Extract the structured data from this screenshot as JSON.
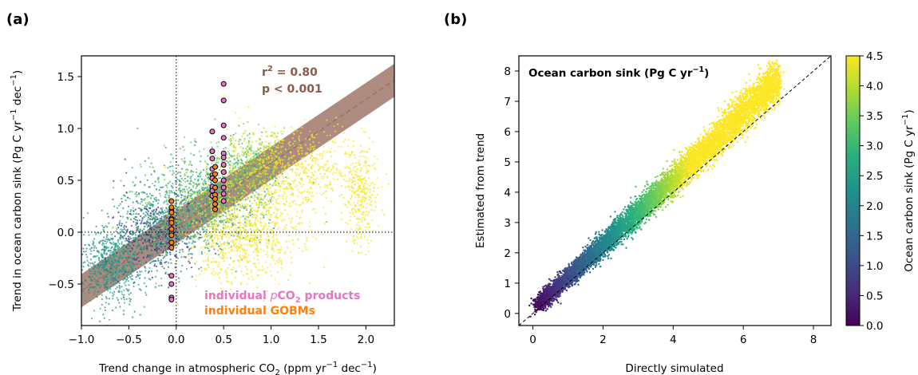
{
  "figure": {
    "panel_a_label": "(a)",
    "panel_b_label": "(b)"
  },
  "chart_data": [
    {
      "type": "scatter",
      "panel": "(a)",
      "xlabel_pre": "Trend change in atmospheric CO",
      "xlabel_sub": "2",
      "xlabel_post": " (ppm yr",
      "xlabel_sup": "−1",
      "xlabel_end": " dec",
      "xlabel_sup2": "−1",
      "xlabel_close": ")",
      "ylabel_pre": "Trend in ocean carbon sink (Pg C yr",
      "ylabel_sup": "−1",
      "ylabel_mid": " dec",
      "ylabel_sup2": "−1",
      "ylabel_close": ")",
      "xlim": [
        -1.0,
        2.3
      ],
      "ylim": [
        -0.9,
        1.7
      ],
      "xticks": [
        -1.0,
        -0.5,
        0.0,
        0.5,
        1.0,
        1.5,
        2.0
      ],
      "xtick_labels": [
        "−1.0",
        "−0.5",
        "0.0",
        "0.5",
        "1.0",
        "1.5",
        "2.0"
      ],
      "yticks": [
        -0.5,
        0.0,
        0.5,
        1.0,
        1.5
      ],
      "ytick_labels": [
        "−0.5",
        "0.0",
        "0.5",
        "1.0",
        "1.5"
      ],
      "reference_lines": {
        "x": 0.0,
        "y": 0.0,
        "style": "dotted"
      },
      "regression": {
        "slope": 0.615,
        "intercept": 0.05,
        "band_halfwidth": 0.16,
        "line_color": "#a07060",
        "band_color": "#a9857a",
        "r2_pre": "r",
        "r2_sup": "2",
        "r2_post": " = 0.80",
        "p_text": "p < 0.001",
        "annotation_color": "#8b5a4a"
      },
      "pco2_products": {
        "label_pre": "individual ",
        "label_italic": "p",
        "label_mid": "CO",
        "label_sub": "2",
        "label_post": " products",
        "color": "#e377c2",
        "points": [
          [
            -0.05,
            0.22
          ],
          [
            -0.05,
            0.13
          ],
          [
            -0.05,
            -0.01
          ],
          [
            -0.05,
            -0.42
          ],
          [
            -0.05,
            -0.5
          ],
          [
            -0.05,
            -0.63
          ],
          [
            -0.05,
            -0.65
          ],
          [
            0.38,
            0.97
          ],
          [
            0.38,
            0.78
          ],
          [
            0.38,
            0.71
          ],
          [
            0.38,
            0.61
          ],
          [
            0.38,
            0.55
          ],
          [
            0.38,
            0.52
          ],
          [
            0.38,
            0.44
          ],
          [
            0.38,
            0.4
          ],
          [
            0.38,
            0.35
          ],
          [
            0.5,
            1.43
          ],
          [
            0.5,
            1.27
          ],
          [
            0.5,
            1.03
          ],
          [
            0.5,
            0.91
          ],
          [
            0.5,
            0.76
          ],
          [
            0.5,
            0.72
          ],
          [
            0.5,
            0.65
          ],
          [
            0.5,
            0.58
          ],
          [
            0.5,
            0.5
          ],
          [
            0.5,
            0.43
          ],
          [
            0.5,
            0.37
          ],
          [
            0.5,
            0.3
          ]
        ]
      },
      "gobms": {
        "label": "individual GOBMs",
        "color": "#ff7f0e",
        "points": [
          [
            -0.05,
            0.3
          ],
          [
            -0.05,
            0.24
          ],
          [
            -0.05,
            0.19
          ],
          [
            -0.05,
            0.12
          ],
          [
            -0.05,
            0.09
          ],
          [
            -0.05,
            0.03
          ],
          [
            -0.05,
            -0.03
          ],
          [
            -0.05,
            -0.1
          ],
          [
            -0.05,
            -0.15
          ],
          [
            0.41,
            0.63
          ],
          [
            0.41,
            0.56
          ],
          [
            0.41,
            0.5
          ],
          [
            0.41,
            0.43
          ],
          [
            0.41,
            0.36
          ],
          [
            0.41,
            0.32
          ],
          [
            0.41,
            0.27
          ],
          [
            0.41,
            0.22
          ]
        ]
      },
      "ensemble_clusters": [
        {
          "cx": -0.7,
          "cy": -0.32,
          "sx": 0.18,
          "sy": 0.18,
          "n": 700,
          "v0": 1.8,
          "v1": 3.0
        },
        {
          "cx": -0.2,
          "cy": 0.0,
          "sx": 0.22,
          "sy": 0.2,
          "n": 900,
          "v0": 0.3,
          "v1": 3.2
        },
        {
          "cx": 0.3,
          "cy": 0.3,
          "sx": 0.3,
          "sy": 0.22,
          "n": 1100,
          "v0": 2.2,
          "v1": 3.8
        },
        {
          "cx": 0.8,
          "cy": 0.65,
          "sx": 0.18,
          "sy": 0.16,
          "n": 500,
          "v0": 3.0,
          "v1": 4.2
        },
        {
          "cx": 1.2,
          "cy": 0.6,
          "sx": 0.35,
          "sy": 0.2,
          "n": 700,
          "v0": 4.4,
          "v1": 4.5
        },
        {
          "cx": 0.7,
          "cy": 0.0,
          "sx": 0.3,
          "sy": 0.25,
          "n": 900,
          "v0": 4.4,
          "v1": 4.5
        },
        {
          "cx": 1.95,
          "cy": 0.35,
          "sx": 0.08,
          "sy": 0.25,
          "n": 300,
          "v0": 4.4,
          "v1": 4.5
        }
      ]
    },
    {
      "type": "scatter",
      "panel": "(b)",
      "xlabel": "Directly simulated",
      "ylabel": "Estimated from trend",
      "inset_title_pre": "Ocean carbon sink (Pg C yr",
      "inset_title_sup": "−1",
      "inset_title_close": ")",
      "xlim": [
        -0.4,
        8.5
      ],
      "ylim": [
        -0.4,
        8.5
      ],
      "xticks": [
        0,
        2,
        4,
        6,
        8
      ],
      "yticks": [
        0,
        1,
        2,
        3,
        4,
        5,
        6,
        7,
        8
      ],
      "one_to_one_line": true,
      "point_count": 9000,
      "x_range": [
        0.1,
        7.0
      ],
      "relation": "y ≈ 1.07·x + 0.15 with slight bulge above 1:1 in upper range",
      "colorbar": {
        "label_pre": "Ocean carbon sink (Pg C yr",
        "label_sup": "−1",
        "label_close": ")",
        "min": 0.0,
        "max": 4.5,
        "ticks": [
          0.0,
          0.5,
          1.0,
          1.5,
          2.0,
          2.5,
          3.0,
          3.5,
          4.0,
          4.5
        ],
        "tick_labels": [
          "0.0",
          "0.5",
          "1.0",
          "1.5",
          "2.0",
          "2.5",
          "3.0",
          "3.5",
          "4.0",
          "4.5"
        ],
        "colormap": "viridis"
      }
    }
  ]
}
